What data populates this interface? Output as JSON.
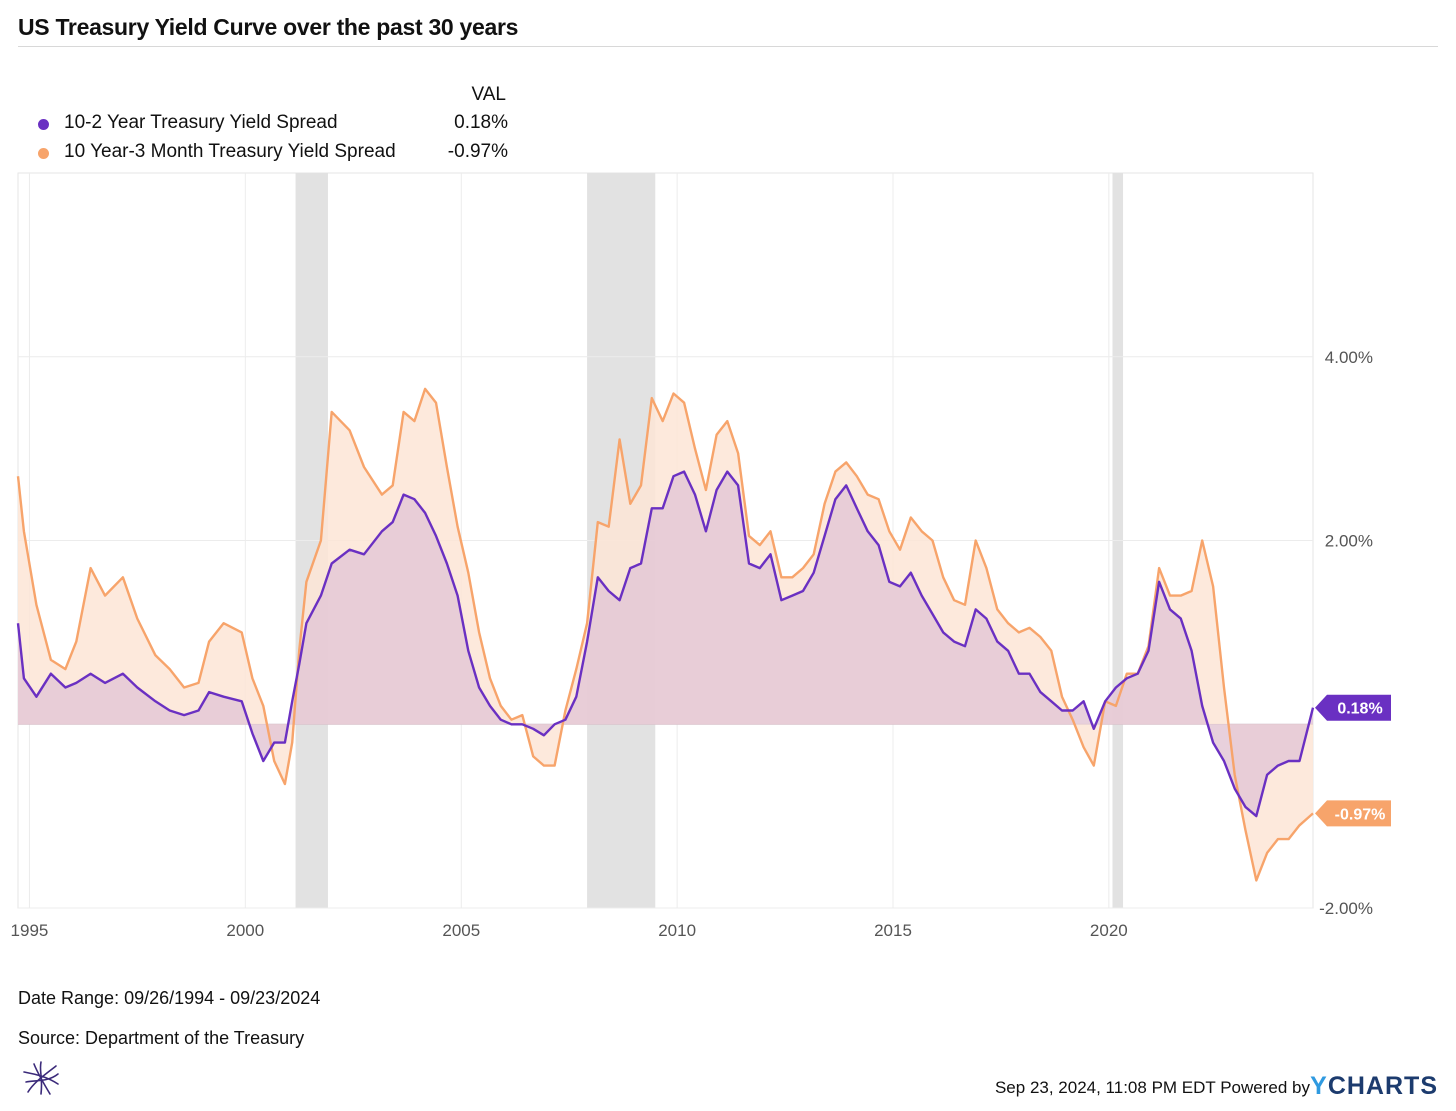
{
  "title": "US Treasury Yield Curve over the past 30 years",
  "legend": {
    "header": "VAL",
    "entries": [
      {
        "name": "10-2 Year Treasury Yield Spread",
        "value": "0.18%",
        "color": "#6a30c2"
      },
      {
        "name": "10 Year-3 Month Treasury Yield Spread",
        "value": "-0.97%",
        "color": "#f7a46b"
      }
    ]
  },
  "footer": {
    "date_range": "Date Range: 09/26/1994 - 09/23/2024",
    "source": "Source: Department of the Treasury",
    "timestamp": "Sep 23, 2024, 11:08 PM EDT",
    "powered_by": "Powered by",
    "brand": "YCHARTS",
    "logo_icon": "ycharts-star-logo-icon"
  },
  "colors": {
    "series_10_2": "#6a30c2",
    "series_10_3m": "#f7a46b",
    "fill_10_2": "#e4c8d6",
    "fill_10_3m": "#fde5d6",
    "recession": "#e2e2e2",
    "grid": "#ececec"
  },
  "chart_data": {
    "type": "line",
    "xlim": [
      "1994-09-26",
      "2024-09-23"
    ],
    "ylim": [
      -2.0,
      6.0
    ],
    "grid": true,
    "y_ticks": [
      {
        "value": 4.0,
        "label": "4.00%"
      },
      {
        "value": 2.0,
        "label": "2.00%"
      },
      {
        "value": -2.0,
        "label": "-2.00%"
      }
    ],
    "x_ticks": [
      {
        "value": "1995-01-01",
        "label": "1995"
      },
      {
        "value": "2000-01-01",
        "label": "2000"
      },
      {
        "value": "2005-01-01",
        "label": "2005"
      },
      {
        "value": "2010-01-01",
        "label": "2010"
      },
      {
        "value": "2015-01-01",
        "label": "2015"
      },
      {
        "value": "2020-01-01",
        "label": "2020"
      }
    ],
    "recessions": [
      [
        "2001-03-01",
        "2001-11-30"
      ],
      [
        "2007-12-01",
        "2009-06-30"
      ],
      [
        "2020-02-01",
        "2020-04-30"
      ]
    ],
    "end_labels": [
      "0.18%",
      "-0.97%"
    ],
    "series": [
      {
        "name": "10-2 Year Treasury Yield Spread",
        "points": [
          [
            "1994-09-26",
            1.1
          ],
          [
            "1994-11-15",
            0.5
          ],
          [
            "1995-03-01",
            0.3
          ],
          [
            "1995-07-01",
            0.55
          ],
          [
            "1995-11-01",
            0.4
          ],
          [
            "1996-02-01",
            0.45
          ],
          [
            "1996-06-01",
            0.55
          ],
          [
            "1996-10-01",
            0.45
          ],
          [
            "1997-03-01",
            0.55
          ],
          [
            "1997-07-01",
            0.4
          ],
          [
            "1997-12-01",
            0.25
          ],
          [
            "1998-04-01",
            0.15
          ],
          [
            "1998-08-01",
            0.1
          ],
          [
            "1998-12-01",
            0.15
          ],
          [
            "1999-03-01",
            0.35
          ],
          [
            "1999-07-01",
            0.3
          ],
          [
            "1999-12-01",
            0.25
          ],
          [
            "2000-03-01",
            -0.1
          ],
          [
            "2000-06-01",
            -0.4
          ],
          [
            "2000-09-01",
            -0.2
          ],
          [
            "2000-12-01",
            -0.2
          ],
          [
            "2001-02-01",
            0.25
          ],
          [
            "2001-04-01",
            0.65
          ],
          [
            "2001-06-01",
            1.1
          ],
          [
            "2001-10-01",
            1.4
          ],
          [
            "2002-01-01",
            1.75
          ],
          [
            "2002-06-01",
            1.9
          ],
          [
            "2002-10-01",
            1.85
          ],
          [
            "2003-03-01",
            2.1
          ],
          [
            "2003-06-01",
            2.2
          ],
          [
            "2003-09-01",
            2.5
          ],
          [
            "2003-12-01",
            2.45
          ],
          [
            "2004-03-01",
            2.3
          ],
          [
            "2004-06-01",
            2.05
          ],
          [
            "2004-09-01",
            1.75
          ],
          [
            "2004-12-01",
            1.4
          ],
          [
            "2005-03-01",
            0.8
          ],
          [
            "2005-06-01",
            0.4
          ],
          [
            "2005-09-01",
            0.2
          ],
          [
            "2005-12-01",
            0.05
          ],
          [
            "2006-03-01",
            0.0
          ],
          [
            "2006-06-01",
            0.0
          ],
          [
            "2006-09-01",
            -0.05
          ],
          [
            "2006-12-01",
            -0.12
          ],
          [
            "2007-03-01",
            0.0
          ],
          [
            "2007-06-01",
            0.05
          ],
          [
            "2007-09-01",
            0.3
          ],
          [
            "2007-12-01",
            0.9
          ],
          [
            "2008-03-01",
            1.6
          ],
          [
            "2008-06-01",
            1.45
          ],
          [
            "2008-09-01",
            1.35
          ],
          [
            "2008-12-01",
            1.7
          ],
          [
            "2009-03-01",
            1.75
          ],
          [
            "2009-06-01",
            2.35
          ],
          [
            "2009-09-01",
            2.35
          ],
          [
            "2009-12-01",
            2.7
          ],
          [
            "2010-03-01",
            2.75
          ],
          [
            "2010-06-01",
            2.5
          ],
          [
            "2010-09-01",
            2.1
          ],
          [
            "2010-12-01",
            2.55
          ],
          [
            "2011-03-01",
            2.75
          ],
          [
            "2011-06-01",
            2.6
          ],
          [
            "2011-09-01",
            1.75
          ],
          [
            "2011-12-01",
            1.7
          ],
          [
            "2012-03-01",
            1.85
          ],
          [
            "2012-06-01",
            1.35
          ],
          [
            "2012-09-01",
            1.4
          ],
          [
            "2012-12-01",
            1.45
          ],
          [
            "2013-03-01",
            1.65
          ],
          [
            "2013-06-01",
            2.05
          ],
          [
            "2013-09-01",
            2.45
          ],
          [
            "2013-12-01",
            2.6
          ],
          [
            "2014-03-01",
            2.35
          ],
          [
            "2014-06-01",
            2.1
          ],
          [
            "2014-09-01",
            1.95
          ],
          [
            "2014-12-01",
            1.55
          ],
          [
            "2015-03-01",
            1.5
          ],
          [
            "2015-06-01",
            1.65
          ],
          [
            "2015-09-01",
            1.4
          ],
          [
            "2015-12-01",
            1.2
          ],
          [
            "2016-03-01",
            1.0
          ],
          [
            "2016-06-01",
            0.9
          ],
          [
            "2016-09-01",
            0.85
          ],
          [
            "2016-12-01",
            1.25
          ],
          [
            "2017-03-01",
            1.15
          ],
          [
            "2017-06-01",
            0.9
          ],
          [
            "2017-09-01",
            0.8
          ],
          [
            "2017-12-01",
            0.55
          ],
          [
            "2018-03-01",
            0.55
          ],
          [
            "2018-06-01",
            0.35
          ],
          [
            "2018-09-01",
            0.25
          ],
          [
            "2018-12-01",
            0.15
          ],
          [
            "2019-03-01",
            0.15
          ],
          [
            "2019-06-01",
            0.25
          ],
          [
            "2019-08-27",
            -0.05
          ],
          [
            "2019-12-01",
            0.25
          ],
          [
            "2020-03-01",
            0.4
          ],
          [
            "2020-06-01",
            0.5
          ],
          [
            "2020-09-01",
            0.55
          ],
          [
            "2020-12-01",
            0.8
          ],
          [
            "2021-03-01",
            1.55
          ],
          [
            "2021-06-01",
            1.25
          ],
          [
            "2021-09-01",
            1.15
          ],
          [
            "2021-12-01",
            0.8
          ],
          [
            "2022-03-01",
            0.2
          ],
          [
            "2022-06-01",
            -0.2
          ],
          [
            "2022-09-01",
            -0.4
          ],
          [
            "2022-12-01",
            -0.7
          ],
          [
            "2023-03-01",
            -0.9
          ],
          [
            "2023-06-01",
            -1.0
          ],
          [
            "2023-09-01",
            -0.55
          ],
          [
            "2023-12-01",
            -0.45
          ],
          [
            "2024-03-01",
            -0.4
          ],
          [
            "2024-06-01",
            -0.4
          ],
          [
            "2024-09-23",
            0.18
          ]
        ]
      },
      {
        "name": "10 Year-3 Month Treasury Yield Spread",
        "points": [
          [
            "1994-09-26",
            2.7
          ],
          [
            "1994-11-15",
            2.1
          ],
          [
            "1995-03-01",
            1.3
          ],
          [
            "1995-07-01",
            0.7
          ],
          [
            "1995-11-01",
            0.6
          ],
          [
            "1996-02-01",
            0.9
          ],
          [
            "1996-06-01",
            1.7
          ],
          [
            "1996-10-01",
            1.4
          ],
          [
            "1997-03-01",
            1.6
          ],
          [
            "1997-07-01",
            1.15
          ],
          [
            "1997-12-01",
            0.75
          ],
          [
            "1998-04-01",
            0.6
          ],
          [
            "1998-08-01",
            0.4
          ],
          [
            "1998-12-01",
            0.45
          ],
          [
            "1999-03-01",
            0.9
          ],
          [
            "1999-07-01",
            1.1
          ],
          [
            "1999-12-01",
            1.0
          ],
          [
            "2000-03-01",
            0.5
          ],
          [
            "2000-06-01",
            0.2
          ],
          [
            "2000-09-01",
            -0.4
          ],
          [
            "2000-12-01",
            -0.65
          ],
          [
            "2001-02-01",
            -0.2
          ],
          [
            "2001-04-01",
            0.8
          ],
          [
            "2001-06-01",
            1.55
          ],
          [
            "2001-10-01",
            2.0
          ],
          [
            "2002-01-01",
            3.4
          ],
          [
            "2002-06-01",
            3.2
          ],
          [
            "2002-10-01",
            2.8
          ],
          [
            "2003-03-01",
            2.5
          ],
          [
            "2003-06-01",
            2.6
          ],
          [
            "2003-09-01",
            3.4
          ],
          [
            "2003-12-01",
            3.3
          ],
          [
            "2004-03-01",
            3.65
          ],
          [
            "2004-06-01",
            3.5
          ],
          [
            "2004-09-01",
            2.8
          ],
          [
            "2004-12-01",
            2.15
          ],
          [
            "2005-03-01",
            1.65
          ],
          [
            "2005-06-01",
            1.0
          ],
          [
            "2005-09-01",
            0.5
          ],
          [
            "2005-12-01",
            0.2
          ],
          [
            "2006-03-01",
            0.05
          ],
          [
            "2006-06-01",
            0.1
          ],
          [
            "2006-09-01",
            -0.35
          ],
          [
            "2006-12-01",
            -0.45
          ],
          [
            "2007-03-01",
            -0.45
          ],
          [
            "2007-06-01",
            0.15
          ],
          [
            "2007-09-01",
            0.6
          ],
          [
            "2007-12-01",
            1.1
          ],
          [
            "2008-03-01",
            2.2
          ],
          [
            "2008-06-01",
            2.15
          ],
          [
            "2008-09-01",
            3.1
          ],
          [
            "2008-12-01",
            2.4
          ],
          [
            "2009-03-01",
            2.6
          ],
          [
            "2009-06-01",
            3.55
          ],
          [
            "2009-09-01",
            3.3
          ],
          [
            "2009-12-01",
            3.6
          ],
          [
            "2010-03-01",
            3.5
          ],
          [
            "2010-06-01",
            3.0
          ],
          [
            "2010-09-01",
            2.55
          ],
          [
            "2010-12-01",
            3.15
          ],
          [
            "2011-03-01",
            3.3
          ],
          [
            "2011-06-01",
            2.95
          ],
          [
            "2011-09-01",
            2.05
          ],
          [
            "2011-12-01",
            1.95
          ],
          [
            "2012-03-01",
            2.1
          ],
          [
            "2012-06-01",
            1.6
          ],
          [
            "2012-09-01",
            1.6
          ],
          [
            "2012-12-01",
            1.7
          ],
          [
            "2013-03-01",
            1.85
          ],
          [
            "2013-06-01",
            2.4
          ],
          [
            "2013-09-01",
            2.75
          ],
          [
            "2013-12-01",
            2.85
          ],
          [
            "2014-03-01",
            2.7
          ],
          [
            "2014-06-01",
            2.5
          ],
          [
            "2014-09-01",
            2.45
          ],
          [
            "2014-12-01",
            2.1
          ],
          [
            "2015-03-01",
            1.9
          ],
          [
            "2015-06-01",
            2.25
          ],
          [
            "2015-09-01",
            2.1
          ],
          [
            "2015-12-01",
            2.0
          ],
          [
            "2016-03-01",
            1.6
          ],
          [
            "2016-06-01",
            1.35
          ],
          [
            "2016-09-01",
            1.3
          ],
          [
            "2016-12-01",
            2.0
          ],
          [
            "2017-03-01",
            1.7
          ],
          [
            "2017-06-01",
            1.25
          ],
          [
            "2017-09-01",
            1.1
          ],
          [
            "2017-12-01",
            1.0
          ],
          [
            "2018-03-01",
            1.05
          ],
          [
            "2018-06-01",
            0.95
          ],
          [
            "2018-09-01",
            0.8
          ],
          [
            "2018-12-01",
            0.3
          ],
          [
            "2019-03-01",
            0.05
          ],
          [
            "2019-06-01",
            -0.25
          ],
          [
            "2019-08-27",
            -0.45
          ],
          [
            "2019-12-01",
            0.25
          ],
          [
            "2020-03-01",
            0.2
          ],
          [
            "2020-06-01",
            0.55
          ],
          [
            "2020-09-01",
            0.55
          ],
          [
            "2020-12-01",
            0.85
          ],
          [
            "2021-03-01",
            1.7
          ],
          [
            "2021-06-01",
            1.4
          ],
          [
            "2021-09-01",
            1.4
          ],
          [
            "2021-12-01",
            1.45
          ],
          [
            "2022-03-01",
            2.0
          ],
          [
            "2022-06-01",
            1.5
          ],
          [
            "2022-09-01",
            0.4
          ],
          [
            "2022-12-01",
            -0.55
          ],
          [
            "2023-03-01",
            -1.15
          ],
          [
            "2023-06-01",
            -1.7
          ],
          [
            "2023-09-01",
            -1.4
          ],
          [
            "2023-12-01",
            -1.25
          ],
          [
            "2024-03-01",
            -1.25
          ],
          [
            "2024-06-01",
            -1.1
          ],
          [
            "2024-09-23",
            -0.97
          ]
        ]
      }
    ]
  }
}
